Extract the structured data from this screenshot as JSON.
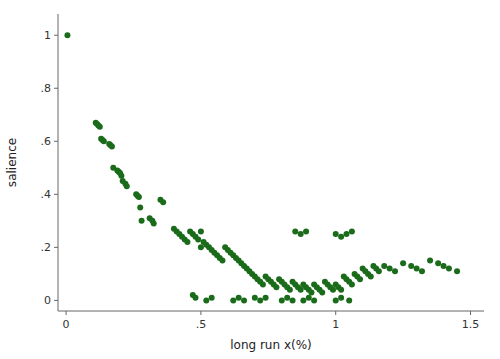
{
  "chart_data": {
    "type": "scatter",
    "xlabel": "long run x(%)",
    "ylabel": "salience",
    "color": "#1a6b1a",
    "xlim": [
      -0.03,
      1.55
    ],
    "ylim": [
      -0.04,
      1.08
    ],
    "xticks": [
      0,
      {
        "value": 0.5,
        "label": ".5"
      },
      1.0,
      1.5
    ],
    "yticks": [
      0,
      {
        "value": 0.2,
        "label": ".2"
      },
      {
        "value": 0.4,
        "label": ".4"
      },
      {
        "value": 0.6,
        "label": ".6"
      },
      {
        "value": 0.8,
        "label": ".8"
      },
      1.0
    ],
    "grid": false,
    "x": [
      0.005,
      0.11,
      0.115,
      0.12,
      0.125,
      0.13,
      0.135,
      0.14,
      0.16,
      0.165,
      0.17,
      0.175,
      0.19,
      0.195,
      0.2,
      0.205,
      0.21,
      0.22,
      0.225,
      0.26,
      0.265,
      0.27,
      0.275,
      0.28,
      0.31,
      0.32,
      0.325,
      0.35,
      0.36,
      0.4,
      0.41,
      0.42,
      0.43,
      0.44,
      0.45,
      0.46,
      0.47,
      0.48,
      0.49,
      0.5,
      0.5,
      0.51,
      0.52,
      0.53,
      0.54,
      0.55,
      0.56,
      0.57,
      0.58,
      0.59,
      0.6,
      0.61,
      0.62,
      0.63,
      0.64,
      0.65,
      0.66,
      0.67,
      0.68,
      0.69,
      0.7,
      0.71,
      0.72,
      0.73,
      0.74,
      0.75,
      0.76,
      0.77,
      0.78,
      0.79,
      0.8,
      0.81,
      0.82,
      0.83,
      0.84,
      0.85,
      0.86,
      0.87,
      0.88,
      0.89,
      0.9,
      0.91,
      0.92,
      0.93,
      0.94,
      0.95,
      0.96,
      0.97,
      0.98,
      0.99,
      1.0,
      1.01,
      1.02,
      1.03,
      1.04,
      1.05,
      1.06,
      1.07,
      1.08,
      1.09,
      1.1,
      1.11,
      1.12,
      1.13,
      1.14,
      1.15,
      1.16,
      1.18,
      1.2,
      1.22,
      1.25,
      1.28,
      1.3,
      1.32,
      1.35,
      1.38,
      1.4,
      1.42,
      1.45,
      0.47,
      0.48,
      0.52,
      0.54,
      0.62,
      0.64,
      0.66,
      0.7,
      0.72,
      0.74,
      0.8,
      0.82,
      0.84,
      0.88,
      0.9,
      0.92,
      1.0,
      1.02,
      1.05,
      0.85,
      0.87,
      0.89,
      1.0,
      1.02,
      1.04,
      1.06
    ],
    "y": [
      1.0,
      0.67,
      0.665,
      0.66,
      0.655,
      0.61,
      0.605,
      0.6,
      0.59,
      0.585,
      0.58,
      0.5,
      0.49,
      0.485,
      0.48,
      0.47,
      0.45,
      0.44,
      0.43,
      0.4,
      0.395,
      0.39,
      0.35,
      0.3,
      0.31,
      0.3,
      0.29,
      0.38,
      0.37,
      0.27,
      0.26,
      0.25,
      0.24,
      0.23,
      0.22,
      0.26,
      0.25,
      0.24,
      0.23,
      0.26,
      0.2,
      0.22,
      0.21,
      0.2,
      0.19,
      0.18,
      0.17,
      0.16,
      0.15,
      0.2,
      0.19,
      0.18,
      0.17,
      0.16,
      0.15,
      0.14,
      0.13,
      0.12,
      0.11,
      0.1,
      0.09,
      0.08,
      0.07,
      0.06,
      0.09,
      0.08,
      0.07,
      0.06,
      0.05,
      0.08,
      0.07,
      0.06,
      0.05,
      0.04,
      0.07,
      0.06,
      0.05,
      0.04,
      0.06,
      0.05,
      0.04,
      0.03,
      0.06,
      0.05,
      0.04,
      0.03,
      0.07,
      0.06,
      0.05,
      0.04,
      0.06,
      0.05,
      0.04,
      0.09,
      0.08,
      0.07,
      0.06,
      0.1,
      0.09,
      0.08,
      0.12,
      0.11,
      0.1,
      0.09,
      0.13,
      0.12,
      0.11,
      0.13,
      0.12,
      0.11,
      0.14,
      0.13,
      0.12,
      0.11,
      0.15,
      0.14,
      0.13,
      0.12,
      0.11,
      0.02,
      0.01,
      0.0,
      0.01,
      0.0,
      0.01,
      0.0,
      0.01,
      0.0,
      0.01,
      0.0,
      0.01,
      0.0,
      0.0,
      0.01,
      0.0,
      0.0,
      0.01,
      0.0,
      0.26,
      0.25,
      0.26,
      0.25,
      0.24,
      0.25,
      0.26
    ]
  }
}
